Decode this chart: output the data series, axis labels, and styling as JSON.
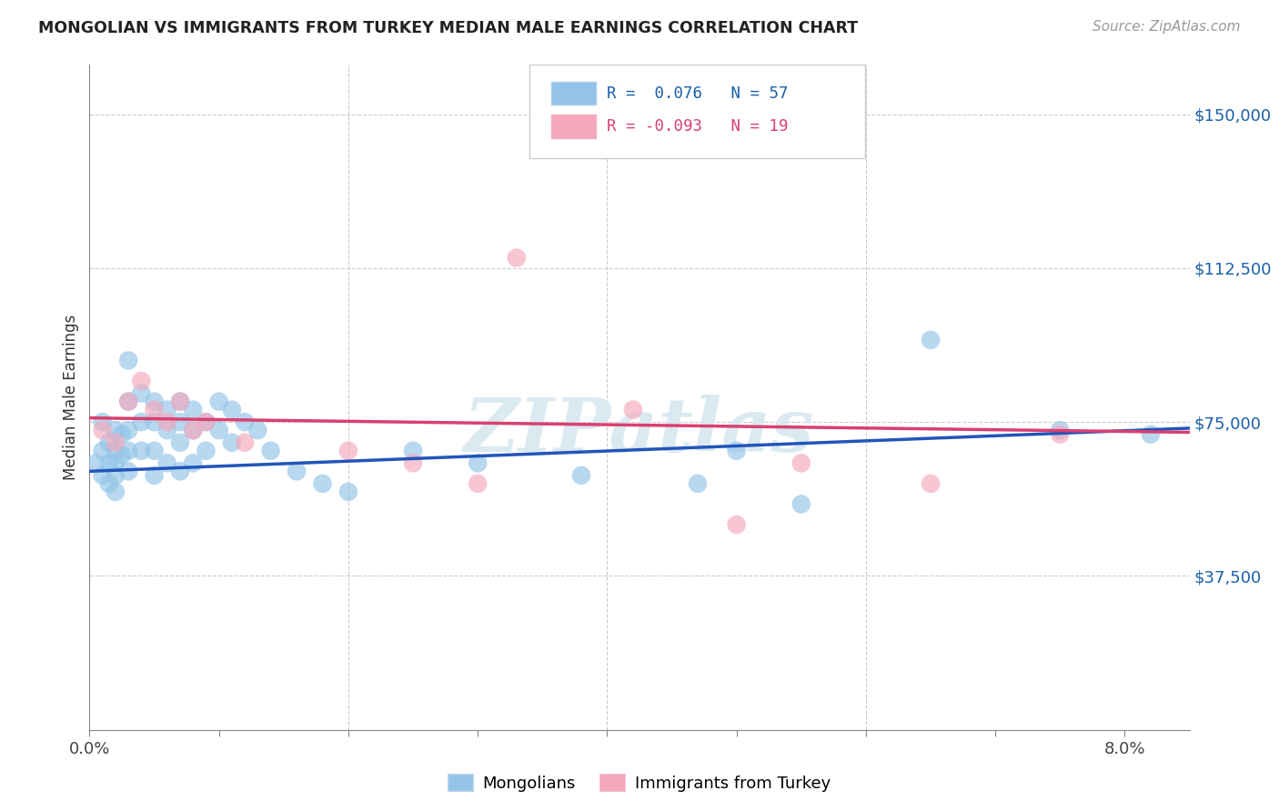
{
  "title": "MONGOLIAN VS IMMIGRANTS FROM TURKEY MEDIAN MALE EARNINGS CORRELATION CHART",
  "source": "Source: ZipAtlas.com",
  "ylabel": "Median Male Earnings",
  "color_blue": "#93c4e8",
  "color_pink": "#f5a8bc",
  "line_color_blue": "#2255bb",
  "line_color_pink": "#d94070",
  "watermark": "ZIPatlas",
  "xlim": [
    0.0,
    0.085
  ],
  "ylim": [
    0,
    162000
  ],
  "ytick_vals": [
    0,
    37500,
    75000,
    112500,
    150000
  ],
  "ytick_labels": [
    "",
    "$37,500",
    "$75,000",
    "$112,500",
    "$150,000"
  ],
  "blue_x": [
    0.0005,
    0.001,
    0.001,
    0.001,
    0.0015,
    0.0015,
    0.0015,
    0.002,
    0.002,
    0.002,
    0.002,
    0.002,
    0.0025,
    0.0025,
    0.003,
    0.003,
    0.003,
    0.003,
    0.003,
    0.004,
    0.004,
    0.004,
    0.005,
    0.005,
    0.005,
    0.005,
    0.006,
    0.006,
    0.006,
    0.007,
    0.007,
    0.007,
    0.007,
    0.008,
    0.008,
    0.008,
    0.009,
    0.009,
    0.01,
    0.01,
    0.011,
    0.011,
    0.012,
    0.013,
    0.014,
    0.016,
    0.018,
    0.02,
    0.025,
    0.03,
    0.038,
    0.047,
    0.05,
    0.055,
    0.065,
    0.075,
    0.082
  ],
  "blue_y": [
    65000,
    75000,
    68000,
    62000,
    70000,
    65000,
    60000,
    73000,
    68000,
    65000,
    62000,
    58000,
    72000,
    67000,
    90000,
    80000,
    73000,
    68000,
    63000,
    82000,
    75000,
    68000,
    80000,
    75000,
    68000,
    62000,
    78000,
    73000,
    65000,
    80000,
    75000,
    70000,
    63000,
    78000,
    73000,
    65000,
    75000,
    68000,
    80000,
    73000,
    78000,
    70000,
    75000,
    73000,
    68000,
    63000,
    60000,
    58000,
    68000,
    65000,
    62000,
    60000,
    68000,
    55000,
    95000,
    73000,
    72000
  ],
  "pink_x": [
    0.001,
    0.002,
    0.003,
    0.004,
    0.005,
    0.006,
    0.007,
    0.008,
    0.009,
    0.012,
    0.02,
    0.025,
    0.03,
    0.033,
    0.042,
    0.05,
    0.055,
    0.065,
    0.075
  ],
  "pink_y": [
    73000,
    70000,
    80000,
    85000,
    78000,
    75000,
    80000,
    73000,
    75000,
    70000,
    68000,
    65000,
    60000,
    115000,
    78000,
    50000,
    65000,
    60000,
    72000
  ],
  "blue_line_x0": 0.0,
  "blue_line_y0": 63000,
  "blue_line_x1": 0.085,
  "blue_line_y1": 73500,
  "pink_line_x0": 0.0,
  "pink_line_y0": 76000,
  "pink_line_x1": 0.085,
  "pink_line_y1": 72500
}
